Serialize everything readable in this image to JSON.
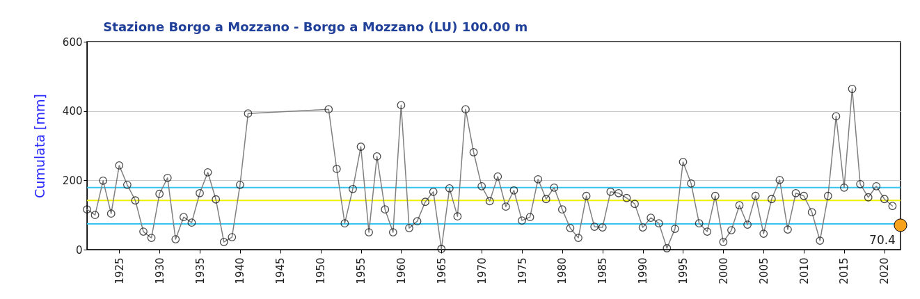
{
  "chart_data": {
    "type": "line",
    "title": "Stazione Borgo a Mozzano - Borgo a Mozzano (LU) 100.00 m",
    "ylabel": "Cumulata [mm]",
    "xlim": [
      1921,
      2022
    ],
    "xticks": [
      1925,
      1930,
      1935,
      1940,
      1945,
      1950,
      1955,
      1960,
      1965,
      1970,
      1975,
      1980,
      1985,
      1990,
      1995,
      2000,
      2005,
      2010,
      2015,
      2020
    ],
    "ylim": [
      0,
      600
    ],
    "yticks": [
      0,
      200,
      400,
      600
    ],
    "grid": "y",
    "marker": "circle",
    "line_style": "solid",
    "series": [
      {
        "type": "line",
        "color": "#808080",
        "x": [
          1921,
          1922,
          1923,
          1924,
          1925,
          1926,
          1927,
          1928,
          1929,
          1930,
          1931,
          1932,
          1933,
          1934,
          1935,
          1936,
          1937,
          1938,
          1939,
          1940,
          1941,
          1951,
          1952,
          1953,
          1954,
          1955,
          1956,
          1957,
          1958,
          1959,
          1960,
          1961,
          1962,
          1963,
          1964,
          1965,
          1966,
          1967,
          1968,
          1969,
          1970,
          1971,
          1972,
          1973,
          1974,
          1975,
          1976,
          1977,
          1978,
          1979,
          1980,
          1981,
          1982,
          1983,
          1984,
          1985,
          1986,
          1987,
          1988,
          1989,
          1990,
          1991,
          1992,
          1993,
          1994,
          1995,
          1996,
          1997,
          1998,
          1999,
          2000,
          2001,
          2002,
          2003,
          2004,
          2005,
          2006,
          2007,
          2008,
          2009,
          2010,
          2011,
          2012,
          2013,
          2014,
          2015,
          2016,
          2017,
          2018,
          2019,
          2020,
          2021
        ],
        "values": [
          116,
          100,
          199,
          104,
          243,
          187,
          142,
          52,
          34,
          161,
          207,
          30,
          94,
          78,
          163,
          223,
          145,
          22,
          36,
          187,
          393,
          405,
          233,
          76,
          175,
          297,
          50,
          269,
          116,
          50,
          417,
          62,
          82,
          138,
          167,
          2,
          177,
          96,
          405,
          281,
          183,
          140,
          211,
          124,
          171,
          84,
          94,
          203,
          146,
          179,
          116,
          62,
          34,
          155,
          66,
          64,
          167,
          163,
          149,
          132,
          64,
          92,
          76,
          4,
          60,
          253,
          191,
          76,
          52,
          155,
          22,
          56,
          128,
          72,
          155,
          46,
          146,
          201,
          58,
          163,
          155,
          108,
          26,
          155,
          385,
          179,
          464,
          189,
          151,
          183,
          146,
          126
        ]
      },
      {
        "type": "scatter",
        "color": "#f7a21b",
        "x": [
          2022
        ],
        "values": [
          70.4
        ],
        "value_labels": [
          "70.4"
        ]
      }
    ],
    "ref_lines": [
      {
        "axis": "y",
        "value": 179,
        "color": "#33c4f0"
      },
      {
        "axis": "y",
        "value": 142,
        "color": "#f0f000"
      },
      {
        "axis": "y",
        "value": 74,
        "color": "#33c4f0"
      }
    ]
  }
}
